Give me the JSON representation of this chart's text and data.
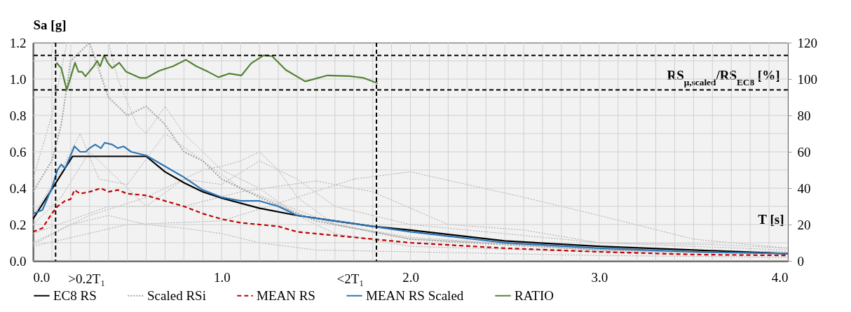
{
  "chart_data": {
    "type": "line",
    "xlabel": "T [s]",
    "ylabel": "Sa [g]",
    "y2label": "RS$_{μ,scaled}$/RS$_{EC8}$ [%]",
    "xlim": [
      0,
      4
    ],
    "ylim": [
      0,
      1.2
    ],
    "y2lim": [
      0,
      120
    ],
    "xticks": [
      {
        "value": 0,
        "label": "0.0"
      },
      {
        "value": 0.1,
        "label": null
      },
      {
        "value": 0.2,
        "label": null
      },
      {
        "value": 0.3,
        "label": null
      },
      {
        "value": 0.4,
        "label": null
      },
      {
        "value": 0.5,
        "label": null
      },
      {
        "value": 0.6,
        "label": null
      },
      {
        "value": 0.7,
        "label": null
      },
      {
        "value": 0.8,
        "label": null
      },
      {
        "value": 0.9,
        "label": null
      },
      {
        "value": 1,
        "label": "1.0"
      },
      {
        "value": 1.1,
        "label": null
      },
      {
        "value": 1.2,
        "label": null
      },
      {
        "value": 1.3,
        "label": null
      },
      {
        "value": 1.4,
        "label": null
      },
      {
        "value": 1.5,
        "label": null
      },
      {
        "value": 1.6,
        "label": null
      },
      {
        "value": 1.7,
        "label": null
      },
      {
        "value": 1.8,
        "label": null
      },
      {
        "value": 1.9,
        "label": null
      },
      {
        "value": 2,
        "label": "2.0"
      },
      {
        "value": 2.1,
        "label": null
      },
      {
        "value": 2.2,
        "label": null
      },
      {
        "value": 2.3,
        "label": null
      },
      {
        "value": 2.4,
        "label": null
      },
      {
        "value": 2.5,
        "label": null
      },
      {
        "value": 2.6,
        "label": null
      },
      {
        "value": 2.7,
        "label": null
      },
      {
        "value": 2.8,
        "label": null
      },
      {
        "value": 2.9,
        "label": null
      },
      {
        "value": 3,
        "label": "3.0"
      },
      {
        "value": 3.1,
        "label": null
      },
      {
        "value": 3.2,
        "label": null
      },
      {
        "value": 3.3,
        "label": null
      },
      {
        "value": 3.4,
        "label": null
      },
      {
        "value": 3.5,
        "label": null
      },
      {
        "value": 3.6,
        "label": null
      },
      {
        "value": 3.7,
        "label": null
      },
      {
        "value": 3.8,
        "label": null
      },
      {
        "value": 3.9,
        "label": null
      },
      {
        "value": 4,
        "label": "4.0"
      }
    ],
    "yticks": [
      {
        "value": 0,
        "label": "0.0"
      },
      {
        "value": 0.1,
        "label": null
      },
      {
        "value": 0.2,
        "label": "0.2"
      },
      {
        "value": 0.3,
        "label": null
      },
      {
        "value": 0.4,
        "label": "0.4"
      },
      {
        "value": 0.5,
        "label": null
      },
      {
        "value": 0.6,
        "label": "0.6"
      },
      {
        "value": 0.7,
        "label": null
      },
      {
        "value": 0.8,
        "label": "0.8"
      },
      {
        "value": 0.9,
        "label": null
      },
      {
        "value": 1,
        "label": "1.0"
      },
      {
        "value": 1.1,
        "label": null
      },
      {
        "value": 1.2,
        "label": "1.2"
      }
    ],
    "y2ticks": [
      0,
      20,
      40,
      60,
      80,
      100,
      120
    ],
    "grid": true,
    "legend": "bottom",
    "ref_lines": [
      {
        "axis": "x",
        "value": 0.12,
        "label": ">0.2T₁",
        "color": "#000000",
        "line_style": "dashed"
      },
      {
        "axis": "x",
        "value": 1.82,
        "label": "<2T₁",
        "color": "#000000",
        "line_style": "dashed"
      },
      {
        "axis": "y2",
        "value": 113,
        "label": null,
        "color": "#000000",
        "line_style": "dashed"
      },
      {
        "axis": "y2",
        "value": 94,
        "label": null,
        "color": "#000000",
        "line_style": "dashed"
      }
    ],
    "series": [
      {
        "name": "EC8 RS",
        "color": "#000000",
        "line_style": "solid",
        "x": [
          0,
          0.21,
          0.6,
          0.7,
          0.8,
          0.9,
          1.0,
          1.2,
          1.4,
          1.6,
          1.8,
          2.0,
          2.5,
          3.0,
          3.5,
          4.0
        ],
        "values": [
          0.23,
          0.575,
          0.575,
          0.49,
          0.43,
          0.38,
          0.345,
          0.29,
          0.25,
          0.22,
          0.19,
          0.17,
          0.11,
          0.08,
          0.06,
          0.04
        ]
      },
      {
        "name": "Scaled RSi",
        "color": "#a6a6a6",
        "line_style": "dotted",
        "x": [
          0,
          0.1,
          0.15,
          0.2,
          0.3,
          0.4,
          0.5,
          0.6,
          0.7,
          0.8,
          0.9,
          1.0,
          1.2,
          1.5,
          2.0,
          3.0,
          4.0
        ],
        "values": [
          0.38,
          0.55,
          0.75,
          1.1,
          1.2,
          0.9,
          0.8,
          0.85,
          0.75,
          0.6,
          0.55,
          0.45,
          0.35,
          0.22,
          0.12,
          0.06,
          0.04
        ]
      },
      {
        "name": "MEAN RS",
        "color": "#c00000",
        "line_style": "dashed",
        "x": [
          0,
          0.05,
          0.1,
          0.13,
          0.17,
          0.2,
          0.22,
          0.25,
          0.3,
          0.33,
          0.36,
          0.4,
          0.45,
          0.5,
          0.6,
          0.7,
          0.8,
          0.9,
          1.0,
          1.1,
          1.2,
          1.3,
          1.4,
          1.6,
          1.8,
          2.0,
          2.5,
          3.0,
          3.5,
          4.0
        ],
        "values": [
          0.16,
          0.18,
          0.26,
          0.3,
          0.33,
          0.34,
          0.39,
          0.37,
          0.38,
          0.39,
          0.4,
          0.38,
          0.39,
          0.37,
          0.36,
          0.33,
          0.3,
          0.26,
          0.23,
          0.21,
          0.2,
          0.19,
          0.16,
          0.14,
          0.12,
          0.1,
          0.07,
          0.05,
          0.035,
          0.03
        ]
      },
      {
        "name": "MEAN RS Scaled",
        "color": "#2e75b6",
        "line_style": "solid",
        "x": [
          0,
          0.05,
          0.1,
          0.13,
          0.15,
          0.17,
          0.2,
          0.22,
          0.25,
          0.28,
          0.3,
          0.33,
          0.36,
          0.38,
          0.42,
          0.45,
          0.48,
          0.52,
          0.6,
          0.7,
          0.8,
          0.9,
          1.0,
          1.1,
          1.2,
          1.3,
          1.4,
          1.6,
          1.8,
          2.0,
          2.5,
          3.0,
          3.5,
          4.0
        ],
        "values": [
          0.26,
          0.28,
          0.4,
          0.5,
          0.53,
          0.51,
          0.58,
          0.63,
          0.6,
          0.6,
          0.62,
          0.64,
          0.62,
          0.65,
          0.64,
          0.62,
          0.63,
          0.6,
          0.58,
          0.52,
          0.46,
          0.39,
          0.35,
          0.33,
          0.33,
          0.3,
          0.25,
          0.22,
          0.19,
          0.16,
          0.1,
          0.07,
          0.05,
          0.04
        ]
      },
      {
        "name": "RATIO",
        "color": "#548235",
        "line_style": "solid",
        "axis": "y2",
        "x": [
          0.124,
          0.15,
          0.179,
          0.223,
          0.241,
          0.26,
          0.278,
          0.322,
          0.34,
          0.356,
          0.377,
          0.396,
          0.42,
          0.457,
          0.494,
          0.569,
          0.6,
          0.668,
          0.742,
          0.81,
          0.866,
          0.928,
          0.983,
          1.039,
          1.105,
          1.156,
          1.222,
          1.267,
          1.34,
          1.443,
          1.561,
          1.68,
          1.753,
          1.826
        ],
        "values": [
          109,
          106,
          94,
          109,
          104,
          104,
          101.5,
          107,
          110,
          107,
          113,
          109,
          106,
          109,
          104,
          100.6,
          100.6,
          104.5,
          107,
          110.6,
          107,
          104,
          101,
          103,
          102,
          108.6,
          113,
          112.6,
          105,
          98.7,
          102,
          101.6,
          100.6,
          97.7
        ]
      },
      {
        "color": "#a6a6a6",
        "line_style": "dotted",
        "x": [
          0,
          0.1,
          0.18,
          0.25,
          0.33,
          0.4,
          0.45,
          0.55,
          0.6,
          0.7,
          0.8,
          0.9,
          1.0,
          1.2,
          1.4,
          1.6,
          2.0,
          3.0,
          4.0
        ],
        "values": [
          0.45,
          0.8,
          1.2,
          1.2,
          1.2,
          1.2,
          1.0,
          0.75,
          0.7,
          0.85,
          0.7,
          0.6,
          0.5,
          0.4,
          0.25,
          0.15,
          0.08,
          0.05,
          0.04
        ]
      },
      {
        "color": "#a6a6a6",
        "line_style": "dotted",
        "x": [
          0,
          0.3,
          0.6,
          0.9,
          1.0,
          1.1,
          1.2,
          1.3,
          1.4,
          1.6,
          2.0,
          3.0,
          4.0
        ],
        "values": [
          0.1,
          0.25,
          0.35,
          0.5,
          0.52,
          0.55,
          0.6,
          0.5,
          0.35,
          0.2,
          0.12,
          0.07,
          0.05
        ]
      },
      {
        "color": "#a6a6a6",
        "line_style": "dotted",
        "x": [
          0,
          0.5,
          1.0,
          1.4,
          1.7,
          2.0,
          2.3,
          2.6,
          3.0,
          3.5,
          4.0
        ],
        "values": [
          0.08,
          0.2,
          0.22,
          0.35,
          0.45,
          0.49,
          0.42,
          0.35,
          0.25,
          0.12,
          0.07
        ]
      },
      {
        "color": "#a6a6a6",
        "line_style": "dotted",
        "x": [
          0,
          0.4,
          0.8,
          1.1,
          1.5,
          1.8,
          2.2,
          2.6,
          3.0,
          4.0
        ],
        "values": [
          0.15,
          0.3,
          0.3,
          0.38,
          0.44,
          0.38,
          0.2,
          0.17,
          0.1,
          0.06
        ]
      },
      {
        "color": "#a6a6a6",
        "line_style": "dotted",
        "x": [
          0,
          0.15,
          0.25,
          0.35,
          0.5,
          0.7,
          0.9,
          1.1,
          1.3,
          1.6,
          2.0,
          3.0,
          4.0
        ],
        "values": [
          0.25,
          0.5,
          0.7,
          0.45,
          0.42,
          0.7,
          0.55,
          0.4,
          0.32,
          0.2,
          0.13,
          0.06,
          0.04
        ]
      },
      {
        "color": "#a6a6a6",
        "line_style": "dotted",
        "x": [
          0,
          0.2,
          0.4,
          0.6,
          0.8,
          1.0,
          1.2,
          1.5,
          2.0,
          3.0,
          4.0
        ],
        "values": [
          0.09,
          0.2,
          0.25,
          0.2,
          0.18,
          0.15,
          0.1,
          0.06,
          0.05,
          0.03,
          0.02
        ]
      },
      {
        "color": "#a6a6a6",
        "line_style": "dotted",
        "x": [
          0,
          0.15,
          0.3,
          0.45,
          0.6,
          0.8,
          1.0,
          1.2,
          1.4,
          1.6,
          2.0,
          2.5,
          3.0,
          3.6,
          4.0
        ],
        "values": [
          0.2,
          0.35,
          0.6,
          0.45,
          0.3,
          0.45,
          0.42,
          0.55,
          0.45,
          0.3,
          0.2,
          0.15,
          0.1,
          0.09,
          0.07
        ]
      }
    ]
  }
}
